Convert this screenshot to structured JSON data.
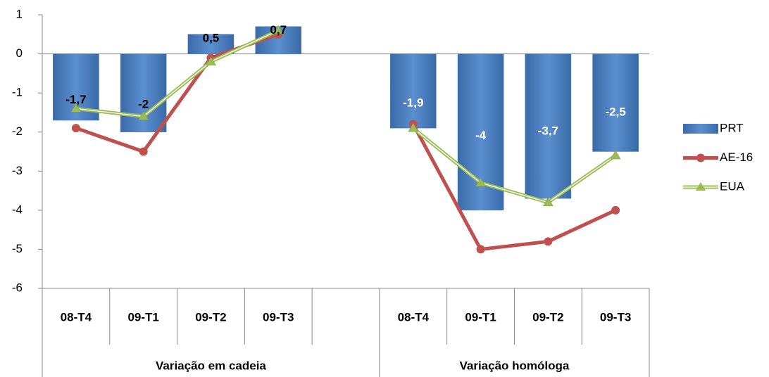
{
  "chart_data": {
    "type": "bar",
    "categories": [
      "08-T4",
      "09-T1",
      "09-T2",
      "09-T3",
      null,
      "08-T4",
      "09-T1",
      "09-T2",
      "09-T3"
    ],
    "groups": [
      {
        "label": "Variação em cadeia",
        "start": 0,
        "end": 4
      },
      {
        "label": "Variação homóloga",
        "start": 5,
        "end": 8
      }
    ],
    "series": [
      {
        "name": "PRT",
        "type": "bar",
        "color": "#4f81bd",
        "values": [
          -1.7,
          -2,
          0.5,
          0.7,
          null,
          -1.9,
          -4,
          -3.7,
          -2.5
        ],
        "value_labels": [
          "-1,7",
          "-2",
          "0,5",
          "0,7",
          null,
          "-1,9",
          "-4",
          "-3,7",
          "-2,5"
        ],
        "value_label_colors": [
          "#000",
          "#000",
          "#000",
          "#000",
          null,
          "#fff",
          "#fff",
          "#fff",
          "#fff"
        ]
      },
      {
        "name": "AE-16",
        "type": "line",
        "marker": "circle",
        "color": "#c0504d",
        "values": [
          -1.9,
          -2.5,
          -0.1,
          0.5,
          null,
          -1.8,
          -5,
          -4.8,
          -4
        ]
      },
      {
        "name": "EUA",
        "type": "line",
        "marker": "triangle",
        "color": "#9bbb59",
        "values": [
          -1.4,
          -1.6,
          -0.2,
          0.6,
          null,
          -1.9,
          -3.3,
          -3.8,
          -2.6
        ]
      }
    ],
    "ylim": [
      -6,
      1
    ],
    "yticks": [
      -6,
      -5,
      -4,
      -3,
      -2,
      -1,
      0,
      1
    ],
    "legend": "right"
  }
}
